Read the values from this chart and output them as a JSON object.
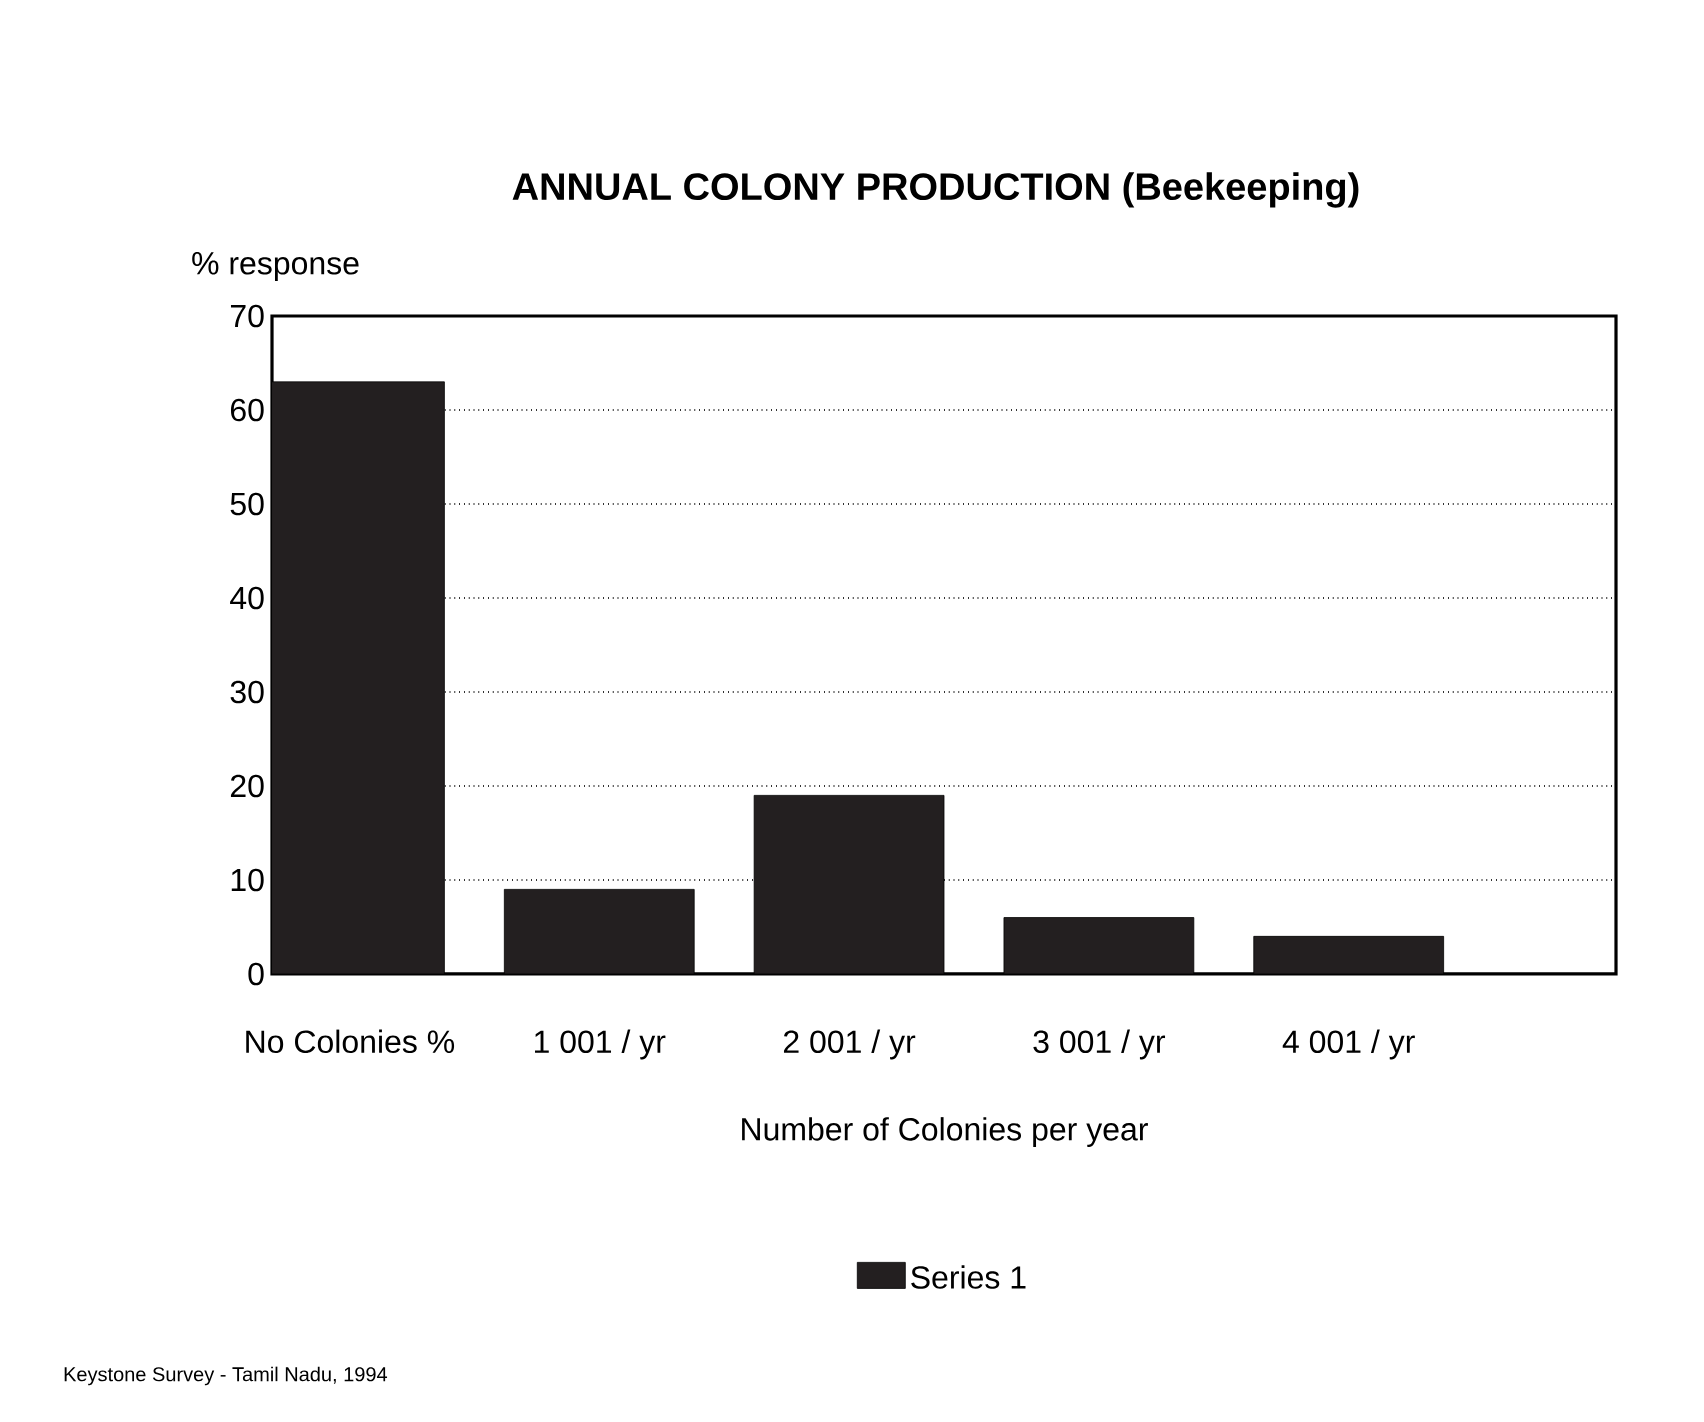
{
  "chart_data": {
    "type": "bar",
    "title": "ANNUAL COLONY PRODUCTION (Beekeeping)",
    "ylabel": "% response",
    "xlabel": "Number of Colonies per year",
    "categories": [
      "No Colonies %",
      "1 001 / yr",
      "2 001 / yr",
      "3 001 / yr",
      "4 001 / yr"
    ],
    "series": [
      {
        "name": "Series 1",
        "color": "#231f20",
        "values": [
          63,
          9,
          19,
          6,
          4
        ]
      }
    ],
    "ylim": [
      0,
      70
    ],
    "yticks": [
      0,
      10,
      20,
      30,
      40,
      50,
      60,
      70
    ],
    "grid": "y",
    "legend": "bottom",
    "annotations": [
      "Keystone Survey - Tamil Nadu, 1994"
    ]
  }
}
